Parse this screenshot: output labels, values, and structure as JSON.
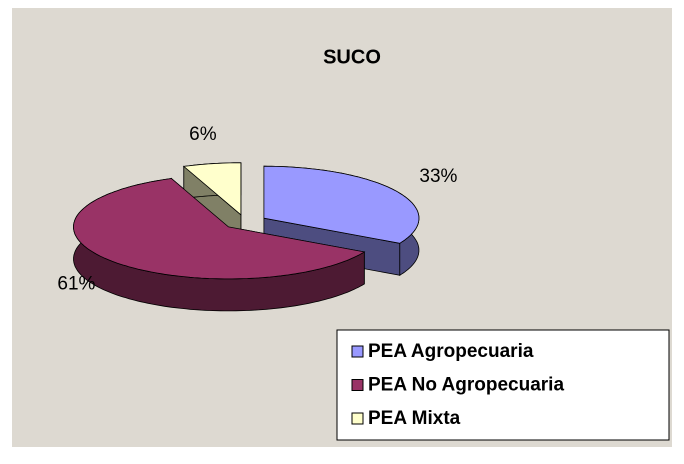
{
  "chart_data": {
    "type": "pie3d",
    "title": "SUCO",
    "categories": [
      "PEA Agropecuaria",
      "PEA No Agropecuaria",
      "PEA Mixta"
    ],
    "values": [
      33,
      61,
      6
    ],
    "value_labels": [
      "33%",
      "61%",
      "6%"
    ],
    "colors": [
      "#9999ff",
      "#993366",
      "#ffffcc"
    ],
    "legend": "bottom-right"
  }
}
